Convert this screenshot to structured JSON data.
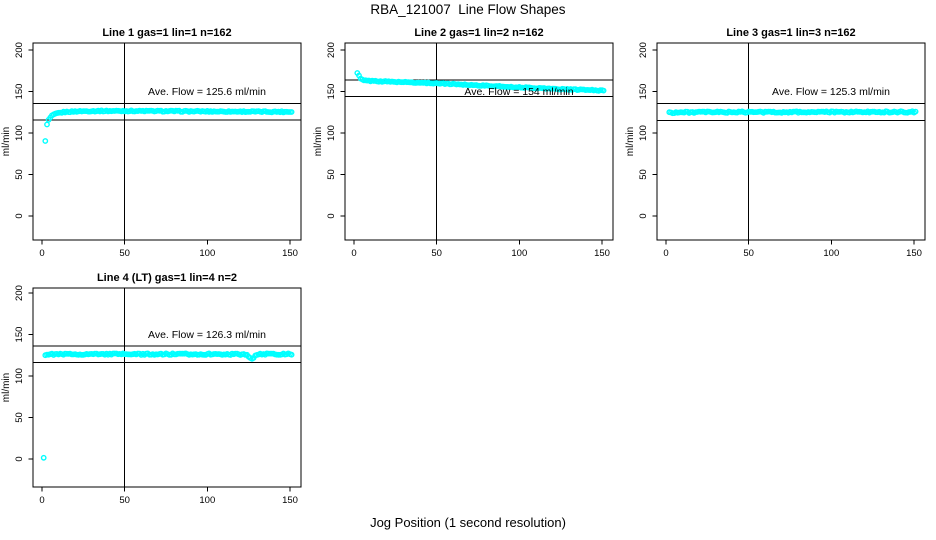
{
  "figure": {
    "title": "RBA_121007  Line Flow Shapes",
    "xlabel": "Jog Position (1 second resolution)",
    "background": "#FFFFFF",
    "point_color": "#00FFFF",
    "line_color": "#000000"
  },
  "chart_data": [
    {
      "type": "scatter",
      "title": "Line 1 gas=1 lin=1 n=162",
      "annotation": "Ave. Flow =  125.6  ml/min",
      "ave_flow_ml_min": 125.6,
      "n": 162,
      "ylabel": "ml/min",
      "x_ticks": [
        0,
        50,
        100,
        150
      ],
      "y_ticks": [
        0,
        50,
        100,
        150,
        200
      ],
      "xlim": [
        -5,
        157
      ],
      "ylim": [
        0,
        200
      ],
      "grid": false,
      "vline_x": 50,
      "hlines": [
        135.6,
        115.6
      ],
      "x_range": [
        2,
        151
      ],
      "jitter": 0.7,
      "keypoints": [
        [
          2,
          90
        ],
        [
          3,
          110
        ],
        [
          4,
          115.5
        ],
        [
          5,
          118.5
        ],
        [
          6,
          120.5
        ],
        [
          7,
          121.8
        ],
        [
          8,
          122.8
        ],
        [
          9,
          123.4
        ],
        [
          10,
          124
        ],
        [
          12,
          124.8
        ],
        [
          15,
          125.5
        ],
        [
          20,
          126
        ],
        [
          25,
          126.3
        ],
        [
          35,
          126.5
        ],
        [
          50,
          126.6
        ],
        [
          70,
          126.4
        ],
        [
          90,
          126.1
        ],
        [
          110,
          125.9
        ],
        [
          130,
          125.7
        ],
        [
          151,
          125.5
        ]
      ],
      "extra_points": [],
      "cell": {
        "row": 0,
        "col": 0
      }
    },
    {
      "type": "scatter",
      "title": "Line 2 gas=1 lin=2 n=162",
      "annotation": "Ave. Flow =  154  ml/min",
      "ave_flow_ml_min": 154,
      "n": 162,
      "ylabel": "ml/min",
      "x_ticks": [
        0,
        50,
        100,
        150
      ],
      "y_ticks": [
        0,
        50,
        100,
        150,
        200
      ],
      "xlim": [
        -5,
        157
      ],
      "ylim": [
        0,
        200
      ],
      "grid": false,
      "vline_x": 50,
      "hlines": [
        164,
        144
      ],
      "x_range": [
        2,
        151
      ],
      "jitter": 0.6,
      "keypoints": [
        [
          2,
          172
        ],
        [
          3,
          169
        ],
        [
          4,
          165.5
        ],
        [
          5,
          164
        ],
        [
          6,
          163.3
        ],
        [
          10,
          162.8
        ],
        [
          20,
          162
        ],
        [
          30,
          161.3
        ],
        [
          40,
          160.5
        ],
        [
          50,
          160
        ],
        [
          60,
          159
        ],
        [
          70,
          158
        ],
        [
          80,
          157
        ],
        [
          90,
          156
        ],
        [
          100,
          155
        ],
        [
          110,
          154.3
        ],
        [
          120,
          153.3
        ],
        [
          130,
          152.5
        ],
        [
          140,
          152
        ],
        [
          146,
          151.5
        ],
        [
          151,
          151
        ]
      ],
      "extra_points": [],
      "cell": {
        "row": 0,
        "col": 1
      }
    },
    {
      "type": "scatter",
      "title": "Line 3 gas=1 lin=3 n=162",
      "annotation": "Ave. Flow =  125.3  ml/min",
      "ave_flow_ml_min": 125.3,
      "n": 162,
      "ylabel": "ml/min",
      "x_ticks": [
        0,
        50,
        100,
        150
      ],
      "y_ticks": [
        0,
        50,
        100,
        150,
        200
      ],
      "xlim": [
        -5,
        157
      ],
      "ylim": [
        0,
        200
      ],
      "grid": false,
      "vline_x": 50,
      "hlines": [
        135.3,
        115.3
      ],
      "x_range": [
        2,
        151
      ],
      "jitter": 0.9,
      "keypoints": [
        [
          2,
          124.6
        ],
        [
          10,
          124.9
        ],
        [
          30,
          125.1
        ],
        [
          60,
          125.2
        ],
        [
          100,
          125.2
        ],
        [
          130,
          125.3
        ],
        [
          151,
          125.3
        ]
      ],
      "extra_points": [],
      "cell": {
        "row": 0,
        "col": 2
      }
    },
    {
      "type": "scatter",
      "title": "Line 4 (LT) gas=1 lin=4 n=2",
      "annotation": "Ave. Flow =  126.3  ml/min",
      "ave_flow_ml_min": 126.3,
      "n": 2,
      "ylabel": "ml/min",
      "x_ticks": [
        0,
        50,
        100,
        150
      ],
      "y_ticks": [
        0,
        50,
        100,
        150,
        200
      ],
      "xlim": [
        -5,
        157
      ],
      "ylim": [
        0,
        200
      ],
      "grid": false,
      "vline_x": 50,
      "hlines": [
        136.3,
        116.3
      ],
      "x_range": [
        2,
        151
      ],
      "jitter": 0.9,
      "keypoints": [
        [
          2,
          125.8
        ],
        [
          5,
          126
        ],
        [
          15,
          126.2
        ],
        [
          40,
          126.4
        ],
        [
          60,
          126.3
        ],
        [
          80,
          126.3
        ],
        [
          100,
          126.3
        ],
        [
          115,
          126.2
        ],
        [
          123,
          126.2
        ],
        [
          125,
          123.5
        ],
        [
          126,
          121.5
        ],
        [
          127,
          121.3
        ],
        [
          128,
          122.5
        ],
        [
          130,
          125.5
        ],
        [
          132,
          126.3
        ],
        [
          151,
          126.4
        ]
      ],
      "extra_points": [
        [
          1,
          1.5
        ]
      ],
      "cell": {
        "row": 1,
        "col": 0
      }
    }
  ]
}
